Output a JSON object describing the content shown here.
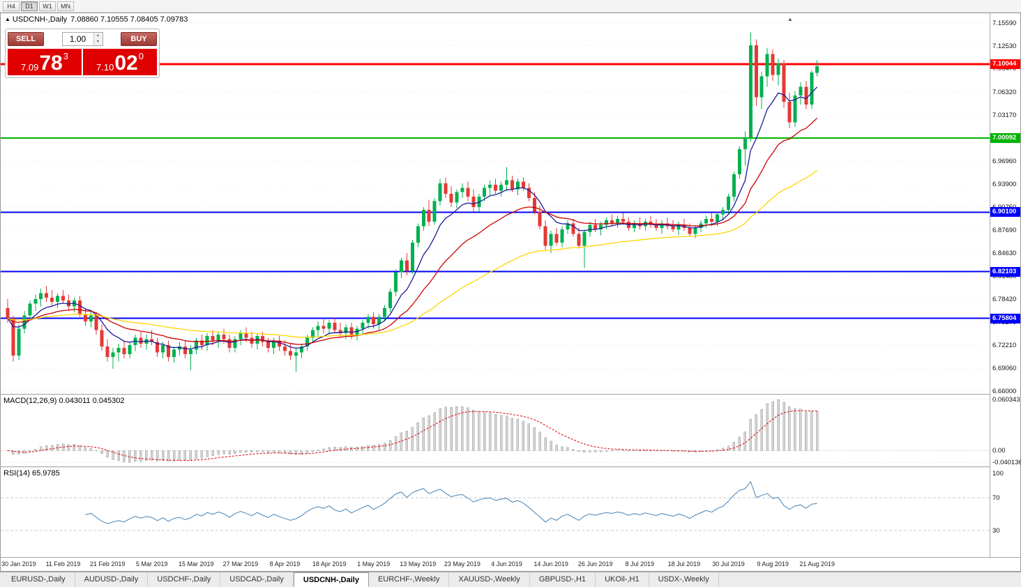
{
  "icons": {
    "collapse": "▲",
    "spin_up": "▴",
    "spin_down": "▾",
    "scroll_end": "▲"
  },
  "toolbar": {
    "periods": [
      {
        "label": "H4",
        "active": false
      },
      {
        "label": "D1",
        "active": true
      },
      {
        "label": "W1",
        "active": false
      },
      {
        "label": "MN",
        "active": false
      }
    ]
  },
  "chart": {
    "title_symbol": "USDCNH-,Daily",
    "title_ohlc": "7.08860 7.10555 7.08405 7.09783"
  },
  "one_click": {
    "sell_label": "SELL",
    "buy_label": "BUY",
    "volume": "1.00",
    "bid": {
      "prefix": "7.09",
      "big": "78",
      "sup": "3"
    },
    "ask": {
      "prefix": "7.10",
      "big": "02",
      "sup": "0"
    }
  },
  "indicators": {
    "macd_label": "MACD(12,26,9) 0.043011 0.045302",
    "rsi_label": "RSI(14) 65.9785",
    "macd_ticks": [
      {
        "value": 0.060343,
        "label": "0.060343",
        "pos": "top"
      },
      {
        "value": 0,
        "label": "0.00",
        "pos": "zero"
      },
      {
        "value": -0.040136,
        "label": "-0.040136",
        "pos": "bottom"
      }
    ],
    "rsi_ticks": [
      {
        "value": 100,
        "label": "100"
      },
      {
        "value": 70,
        "label": "70"
      },
      {
        "value": 30,
        "label": "30"
      }
    ]
  },
  "colors": {
    "bull": "#00b050",
    "bear": "#e53935",
    "ma_fast": "#1a1a9c",
    "ma_mid": "#cc0000",
    "ma_slow": "#ffd500",
    "hline_red": "#ff0000",
    "hline_green": "#00b400",
    "hline_blue": "#0000ff",
    "macd_hist_fill": "#d4d4d4",
    "macd_hist_stroke": "#9e9e9e",
    "macd_signal": "#e00000",
    "rsi_line": "#4682b4",
    "grid": "#ededed",
    "price_panel_bg": "#e00000"
  },
  "chart_data": {
    "type": "candlestick",
    "symbol": "USDCNH",
    "period": "Daily",
    "price_range": [
      6.66,
      7.1559
    ],
    "price_ticks": [
      "7.15590",
      "7.12530",
      "7.09470",
      "7.06320",
      "7.03170",
      "7.00020",
      "6.96960",
      "6.93900",
      "6.90750",
      "6.87690",
      "6.84630",
      "6.81480",
      "6.78420",
      "6.75270",
      "6.72210",
      "6.69060",
      "6.66000"
    ],
    "hlines": [
      {
        "price": 7.10044,
        "label": "7.10044",
        "color": "#ff0000",
        "width": 3
      },
      {
        "price": 7.00092,
        "label": "7.00092",
        "color": "#00b400",
        "width": 2
      },
      {
        "price": 6.901,
        "label": "6.90100",
        "color": "#0000ff",
        "width": 2
      },
      {
        "price": 6.82103,
        "label": "6.82103",
        "color": "#0000ff",
        "width": 2
      },
      {
        "price": 6.75804,
        "label": "6.75804",
        "color": "#0000ff",
        "width": 2
      }
    ],
    "moving_averages": [
      {
        "period": 8,
        "color": "#1a1a9c"
      },
      {
        "period": 21,
        "color": "#cc0000"
      },
      {
        "period": 55,
        "color": "#ffd500"
      }
    ],
    "macd": {
      "fast": 12,
      "slow": 26,
      "signal": 9,
      "current_macd": 0.043011,
      "current_signal": 0.045302
    },
    "rsi": {
      "period": 14,
      "current": 65.9785,
      "levels": [
        70,
        30
      ]
    },
    "date_labels": [
      {
        "index": 2,
        "label": "30 Jan 2019"
      },
      {
        "index": 10,
        "label": "11 Feb 2019"
      },
      {
        "index": 18,
        "label": "21 Feb 2019"
      },
      {
        "index": 26,
        "label": "5 Mar 2019"
      },
      {
        "index": 34,
        "label": "15 Mar 2019"
      },
      {
        "index": 42,
        "label": "27 Mar 2019"
      },
      {
        "index": 50,
        "label": "8 Apr 2019"
      },
      {
        "index": 58,
        "label": "18 Apr 2019"
      },
      {
        "index": 66,
        "label": "1 May 2019"
      },
      {
        "index": 74,
        "label": "13 May 2019"
      },
      {
        "index": 82,
        "label": "23 May 2019"
      },
      {
        "index": 90,
        "label": "4 Jun 2019"
      },
      {
        "index": 98,
        "label": "14 Jun 2019"
      },
      {
        "index": 106,
        "label": "26 Jun 2019"
      },
      {
        "index": 114,
        "label": "8 Jul 2019"
      },
      {
        "index": 122,
        "label": "18 Jul 2019"
      },
      {
        "index": 130,
        "label": "30 Jul 2019"
      },
      {
        "index": 138,
        "label": "9 Aug 2019"
      },
      {
        "index": 146,
        "label": "21 Aug 2019"
      }
    ],
    "ohlc": [
      [
        6.772,
        6.784,
        6.752,
        6.758
      ],
      [
        6.758,
        6.762,
        6.7,
        6.708
      ],
      [
        6.708,
        6.75,
        6.702,
        6.744
      ],
      [
        6.744,
        6.768,
        6.738,
        6.762
      ],
      [
        6.762,
        6.782,
        6.756,
        6.778
      ],
      [
        6.778,
        6.79,
        6.768,
        6.784
      ],
      [
        6.784,
        6.798,
        6.774,
        6.792
      ],
      [
        6.792,
        6.802,
        6.78,
        6.786
      ],
      [
        6.786,
        6.796,
        6.774,
        6.78
      ],
      [
        6.78,
        6.792,
        6.772,
        6.788
      ],
      [
        6.788,
        6.796,
        6.778,
        6.782
      ],
      [
        6.782,
        6.79,
        6.768,
        6.774
      ],
      [
        6.774,
        6.786,
        6.766,
        6.782
      ],
      [
        6.782,
        6.788,
        6.76,
        6.764
      ],
      [
        6.764,
        6.772,
        6.748,
        6.754
      ],
      [
        6.754,
        6.768,
        6.746,
        6.762
      ],
      [
        6.762,
        6.766,
        6.736,
        6.742
      ],
      [
        6.742,
        6.75,
        6.714,
        6.72
      ],
      [
        6.72,
        6.73,
        6.7,
        6.706
      ],
      [
        6.706,
        6.718,
        6.69,
        6.712
      ],
      [
        6.712,
        6.724,
        6.7,
        6.718
      ],
      [
        6.718,
        6.728,
        6.704,
        6.71
      ],
      [
        6.71,
        6.726,
        6.704,
        6.722
      ],
      [
        6.722,
        6.736,
        6.714,
        6.732
      ],
      [
        6.732,
        6.74,
        6.718,
        6.724
      ],
      [
        6.724,
        6.736,
        6.716,
        6.73
      ],
      [
        6.73,
        6.742,
        6.722,
        6.726
      ],
      [
        6.726,
        6.732,
        6.706,
        6.712
      ],
      [
        6.712,
        6.726,
        6.704,
        6.722
      ],
      [
        6.722,
        6.728,
        6.7,
        6.706
      ],
      [
        6.706,
        6.72,
        6.698,
        6.716
      ],
      [
        6.716,
        6.726,
        6.708,
        6.72
      ],
      [
        6.72,
        6.728,
        6.704,
        6.71
      ],
      [
        6.71,
        6.722,
        6.688,
        6.716
      ],
      [
        6.716,
        6.732,
        6.71,
        6.728
      ],
      [
        6.728,
        6.736,
        6.716,
        6.722
      ],
      [
        6.722,
        6.738,
        6.714,
        6.734
      ],
      [
        6.734,
        6.742,
        6.722,
        6.728
      ],
      [
        6.728,
        6.74,
        6.718,
        6.736
      ],
      [
        6.736,
        6.744,
        6.724,
        6.73
      ],
      [
        6.73,
        6.736,
        6.712,
        6.718
      ],
      [
        6.718,
        6.734,
        6.712,
        6.73
      ],
      [
        6.73,
        6.742,
        6.722,
        6.738
      ],
      [
        6.738,
        6.746,
        6.726,
        6.732
      ],
      [
        6.732,
        6.74,
        6.718,
        6.724
      ],
      [
        6.724,
        6.738,
        6.716,
        6.734
      ],
      [
        6.734,
        6.74,
        6.72,
        6.726
      ],
      [
        6.726,
        6.732,
        6.712,
        6.718
      ],
      [
        6.718,
        6.732,
        6.71,
        6.728
      ],
      [
        6.728,
        6.734,
        6.714,
        6.72
      ],
      [
        6.72,
        6.728,
        6.708,
        6.714
      ],
      [
        6.714,
        6.724,
        6.702,
        6.708
      ],
      [
        6.708,
        6.718,
        6.686,
        6.712
      ],
      [
        6.712,
        6.724,
        6.704,
        6.72
      ],
      [
        6.72,
        6.736,
        6.714,
        6.732
      ],
      [
        6.732,
        6.746,
        6.726,
        6.742
      ],
      [
        6.742,
        6.754,
        6.734,
        6.748
      ],
      [
        6.748,
        6.758,
        6.738,
        6.744
      ],
      [
        6.744,
        6.756,
        6.736,
        6.752
      ],
      [
        6.752,
        6.758,
        6.738,
        6.742
      ],
      [
        6.742,
        6.752,
        6.732,
        6.738
      ],
      [
        6.738,
        6.75,
        6.73,
        6.746
      ],
      [
        6.746,
        6.752,
        6.73,
        6.736
      ],
      [
        6.736,
        6.748,
        6.728,
        6.744
      ],
      [
        6.744,
        6.756,
        6.736,
        6.752
      ],
      [
        6.752,
        6.764,
        6.744,
        6.76
      ],
      [
        6.76,
        6.766,
        6.744,
        6.75
      ],
      [
        6.75,
        6.764,
        6.742,
        6.76
      ],
      [
        6.76,
        6.776,
        6.754,
        6.772
      ],
      [
        6.772,
        6.798,
        6.766,
        6.794
      ],
      [
        6.794,
        6.824,
        6.788,
        6.82
      ],
      [
        6.82,
        6.84,
        6.812,
        6.836
      ],
      [
        6.836,
        6.846,
        6.816,
        6.822
      ],
      [
        6.822,
        6.864,
        6.818,
        6.86
      ],
      [
        6.86,
        6.886,
        6.854,
        6.882
      ],
      [
        6.882,
        6.908,
        6.876,
        6.904
      ],
      [
        6.904,
        6.918,
        6.882,
        6.888
      ],
      [
        6.888,
        6.92,
        6.884,
        6.916
      ],
      [
        6.916,
        6.946,
        6.91,
        6.94
      ],
      [
        6.94,
        6.948,
        6.92,
        6.926
      ],
      [
        6.926,
        6.936,
        6.908,
        6.914
      ],
      [
        6.914,
        6.932,
        6.906,
        6.928
      ],
      [
        6.928,
        6.94,
        6.92,
        6.934
      ],
      [
        6.934,
        6.942,
        6.916,
        6.922
      ],
      [
        6.922,
        6.932,
        6.902,
        6.908
      ],
      [
        6.908,
        6.926,
        6.902,
        6.922
      ],
      [
        6.922,
        6.938,
        6.916,
        6.934
      ],
      [
        6.934,
        6.944,
        6.924,
        6.938
      ],
      [
        6.938,
        6.946,
        6.926,
        6.93
      ],
      [
        6.93,
        6.942,
        6.922,
        6.938
      ],
      [
        6.938,
        6.962,
        6.93,
        6.944
      ],
      [
        6.944,
        6.95,
        6.928,
        6.932
      ],
      [
        6.932,
        6.946,
        6.924,
        6.942
      ],
      [
        6.942,
        6.948,
        6.93,
        6.934
      ],
      [
        6.934,
        6.94,
        6.916,
        6.92
      ],
      [
        6.92,
        6.928,
        6.898,
        6.902
      ],
      [
        6.902,
        6.91,
        6.878,
        6.882
      ],
      [
        6.882,
        6.89,
        6.85,
        6.856
      ],
      [
        6.856,
        6.876,
        6.846,
        6.872
      ],
      [
        6.872,
        6.88,
        6.856,
        6.86
      ],
      [
        6.86,
        6.882,
        6.854,
        6.878
      ],
      [
        6.878,
        6.89,
        6.872,
        6.886
      ],
      [
        6.886,
        6.892,
        6.868,
        6.872
      ],
      [
        6.872,
        6.88,
        6.852,
        6.856
      ],
      [
        6.856,
        6.878,
        6.826,
        6.874
      ],
      [
        6.874,
        6.888,
        6.868,
        6.884
      ],
      [
        6.884,
        6.892,
        6.874,
        6.878
      ],
      [
        6.878,
        6.888,
        6.87,
        6.884
      ],
      [
        6.884,
        6.894,
        6.878,
        6.89
      ],
      [
        6.89,
        6.898,
        6.882,
        6.886
      ],
      [
        6.886,
        6.896,
        6.88,
        6.892
      ],
      [
        6.892,
        6.9,
        6.884,
        6.888
      ],
      [
        6.888,
        6.894,
        6.876,
        6.88
      ],
      [
        6.88,
        6.89,
        6.874,
        6.886
      ],
      [
        6.886,
        6.894,
        6.878,
        6.882
      ],
      [
        6.882,
        6.892,
        6.876,
        6.888
      ],
      [
        6.888,
        6.896,
        6.88,
        6.884
      ],
      [
        6.884,
        6.892,
        6.876,
        6.88
      ],
      [
        6.88,
        6.89,
        6.872,
        6.886
      ],
      [
        6.886,
        6.894,
        6.878,
        6.882
      ],
      [
        6.882,
        6.89,
        6.874,
        6.878
      ],
      [
        6.878,
        6.888,
        6.87,
        6.884
      ],
      [
        6.884,
        6.892,
        6.876,
        6.88
      ],
      [
        6.88,
        6.886,
        6.868,
        6.872
      ],
      [
        6.872,
        6.884,
        6.866,
        6.88
      ],
      [
        6.88,
        6.89,
        6.874,
        6.886
      ],
      [
        6.886,
        6.896,
        6.88,
        6.892
      ],
      [
        6.892,
        6.9,
        6.882,
        6.888
      ],
      [
        6.888,
        6.902,
        6.882,
        6.898
      ],
      [
        6.898,
        6.908,
        6.89,
        6.904
      ],
      [
        6.904,
        6.926,
        6.898,
        6.922
      ],
      [
        6.922,
        6.956,
        6.916,
        6.952
      ],
      [
        6.952,
        6.99,
        6.946,
        6.986
      ],
      [
        6.986,
        7.01,
        6.964,
        7.002
      ],
      [
        7.002,
        7.143,
        6.996,
        7.126
      ],
      [
        7.126,
        7.134,
        7.044,
        7.056
      ],
      [
        7.056,
        7.09,
        7.04,
        7.084
      ],
      [
        7.084,
        7.122,
        7.07,
        7.114
      ],
      [
        7.114,
        7.12,
        7.078,
        7.086
      ],
      [
        7.086,
        7.108,
        7.072,
        7.102
      ],
      [
        7.102,
        7.106,
        7.042,
        7.05
      ],
      [
        7.05,
        7.062,
        7.014,
        7.022
      ],
      [
        7.022,
        7.064,
        7.016,
        7.058
      ],
      [
        7.058,
        7.076,
        7.046,
        7.07
      ],
      [
        7.07,
        7.078,
        7.04,
        7.046
      ],
      [
        7.046,
        7.092,
        7.04,
        7.089
      ],
      [
        7.0886,
        7.10555,
        7.08405,
        7.09783
      ]
    ]
  },
  "tabs": [
    {
      "label": "EURUSD-,Daily",
      "active": false
    },
    {
      "label": "AUDUSD-,Daily",
      "active": false
    },
    {
      "label": "USDCHF-,Daily",
      "active": false
    },
    {
      "label": "USDCAD-,Daily",
      "active": false
    },
    {
      "label": "USDCNH-,Daily",
      "active": true
    },
    {
      "label": "EURCHF-,Weekly",
      "active": false
    },
    {
      "label": "XAUUSD-,Weekly",
      "active": false
    },
    {
      "label": "GBPUSD-,H1",
      "active": false
    },
    {
      "label": "UKOil-,H1",
      "active": false
    },
    {
      "label": "USDX-,Weekly",
      "active": false
    }
  ]
}
